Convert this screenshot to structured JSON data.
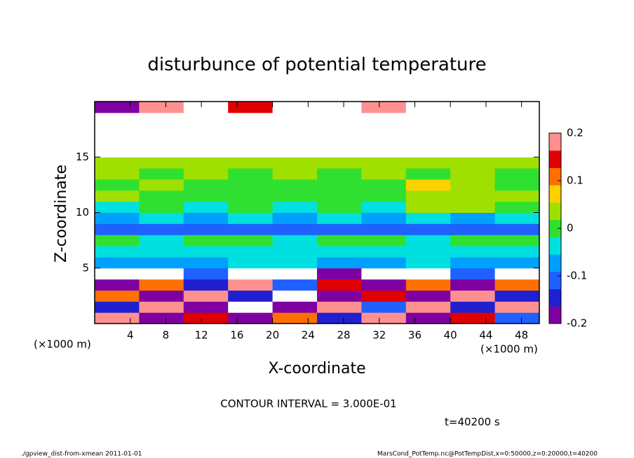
{
  "chart_data": {
    "type": "heatmap",
    "title": "disturbunce of potential temperature",
    "xlabel": "X-coordinate",
    "ylabel": "Z-coordinate",
    "x_unit": "(×1000 m)",
    "y_unit": "(×1000 m)",
    "note": "CONTOUR INTERVAL = 3.000E-01",
    "time_label": "t=40200 s",
    "footer_left": "./gpview_dist-from-xmean   2011-01-01",
    "footer_right": "MarsCond_PotTemp.nc@PotTempDist,x=0:50000,z=0:20000,t=40200",
    "x": [
      2.5,
      7.5,
      12.5,
      17.5,
      22.5,
      27.5,
      32.5,
      37.5,
      42.5,
      47.5
    ],
    "y": [
      0.5,
      1.5,
      2.5,
      3.5,
      4.5,
      5.5,
      6.5,
      7.5,
      8.5,
      9.5,
      10.5,
      11.5,
      12.5,
      13.5,
      14.5,
      15.5,
      16.5,
      17.5,
      18.5,
      19.5
    ],
    "values": [
      [
        0.2,
        -0.2,
        0.15,
        -0.2,
        0.1,
        -0.15,
        0.2,
        -0.2,
        0.15,
        -0.1
      ],
      [
        -0.15,
        0.2,
        -0.2,
        0.25,
        -0.2,
        0.2,
        -0.1,
        0.2,
        -0.15,
        0.2
      ],
      [
        0.1,
        -0.2,
        0.2,
        -0.15,
        0.3,
        -0.2,
        0.15,
        -0.2,
        0.2,
        -0.15
      ],
      [
        -0.2,
        0.1,
        -0.15,
        0.2,
        -0.1,
        0.15,
        -0.2,
        0.1,
        -0.2,
        0.1
      ],
      [
        0.3,
        0.25,
        -0.1,
        0.3,
        0.25,
        -0.2,
        0.3,
        0.25,
        -0.1,
        0.3
      ],
      [
        -0.08,
        -0.06,
        -0.08,
        -0.05,
        -0.05,
        -0.06,
        -0.08,
        -0.05,
        -0.06,
        -0.08
      ],
      [
        -0.04,
        -0.05,
        -0.04,
        -0.05,
        -0.04,
        -0.05,
        -0.04,
        -0.05,
        -0.04,
        -0.05
      ],
      [
        0,
        -0.02,
        -0.01,
        0,
        -0.02,
        -0.01,
        0,
        -0.02,
        0.01,
        0
      ],
      [
        -0.1,
        -0.11,
        -0.1,
        -0.11,
        -0.1,
        -0.11,
        -0.1,
        -0.11,
        -0.1,
        -0.11
      ],
      [
        -0.06,
        -0.05,
        -0.06,
        -0.05,
        -0.06,
        -0.05,
        -0.06,
        -0.05,
        -0.06,
        -0.05
      ],
      [
        -0.02,
        -0.01,
        -0.02,
        -0.01,
        -0.02,
        -0.01,
        -0.02,
        0.05,
        0.03,
        -0.01
      ],
      [
        0.02,
        0.01,
        0,
        0.01,
        0,
        0.01,
        0,
        0.03,
        0.05,
        0.02
      ],
      [
        0.01,
        0.05,
        0.01,
        0,
        0.01,
        0,
        0.01,
        0.06,
        0.02,
        0.01
      ],
      [
        0.02,
        0.01,
        0.02,
        0.01,
        0.02,
        0.01,
        0.02,
        0.01,
        0.02,
        0.01
      ],
      [
        0.02,
        0.02,
        0.02,
        0.02,
        0.02,
        0.02,
        0.02,
        0.02,
        0.02,
        0.02
      ],
      [
        0.4,
        0.4,
        0.4,
        0.4,
        0.4,
        0.4,
        0.4,
        0.4,
        0.4,
        0.4
      ],
      [
        0.5,
        -0.4,
        0.5,
        0.5,
        -0.4,
        0.5,
        0.5,
        -0.4,
        0.5,
        0.5
      ],
      [
        -0.6,
        -0.5,
        0.4,
        -0.6,
        -0.6,
        -0.5,
        0.4,
        0.3,
        -0.4,
        -0.5
      ],
      [
        0.3,
        -0.3,
        0.4,
        -0.3,
        0.3,
        -0.4,
        0.3,
        0.6,
        -0.3,
        0.3
      ],
      [
        -0.2,
        0.2,
        0.3,
        0.15,
        0.3,
        -0.3,
        0.2,
        0.3,
        0.5,
        -0.3
      ]
    ],
    "xlim": [
      0,
      50
    ],
    "xticks": [
      4,
      8,
      12,
      16,
      20,
      24,
      28,
      32,
      36,
      40,
      44,
      48
    ],
    "ylim": [
      0,
      20
    ],
    "yticks": [
      5,
      10,
      15
    ],
    "clim": [
      -0.2,
      0.2
    ],
    "cticks": [
      -0.2,
      -0.1,
      0,
      0.1,
      0.2
    ],
    "colorscale": [
      "#7f00a0",
      "#2020d0",
      "#2060ff",
      "#00a0ff",
      "#00e0e0",
      "#30e030",
      "#a0e000",
      "#ffd000",
      "#ff7000",
      "#e00000",
      "#ff9090"
    ]
  }
}
